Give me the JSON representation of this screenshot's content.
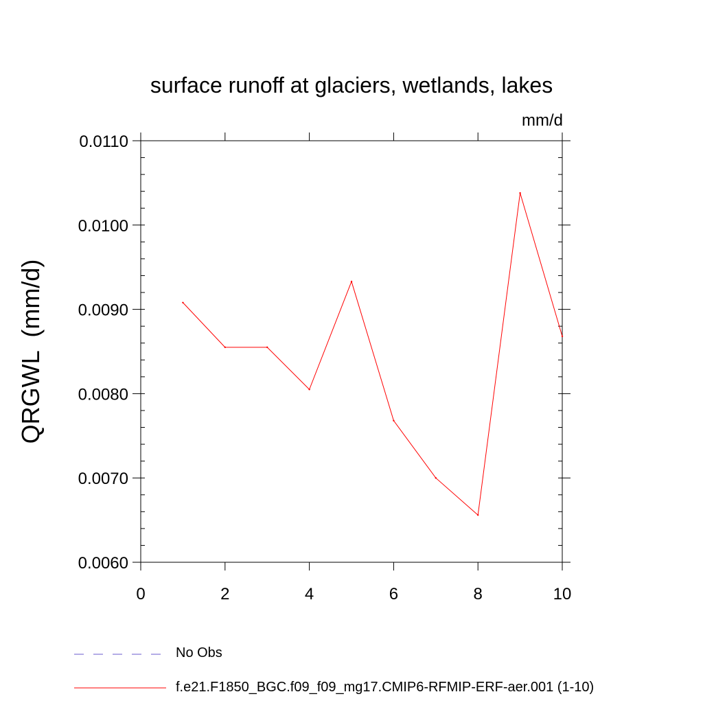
{
  "chart_data": {
    "type": "line",
    "title": "surface runoff at glaciers, wetlands, lakes",
    "units_label": "mm/d",
    "ylabel": "QRGWL  (mm/d)",
    "xlabel": "",
    "xlim": [
      0,
      10
    ],
    "ylim": [
      0.006,
      0.011
    ],
    "x_ticks": [
      0,
      2,
      4,
      6,
      8,
      10
    ],
    "x_tick_labels": [
      "0",
      "2",
      "4",
      "6",
      "8",
      "10"
    ],
    "y_ticks": [
      0.006,
      0.007,
      0.008,
      0.009,
      0.01,
      0.011
    ],
    "y_tick_labels": [
      "0.0060",
      "0.0070",
      "0.0080",
      "0.0090",
      "0.0100",
      "0.0110"
    ],
    "grid": false,
    "legend_position": "bottom",
    "series": [
      {
        "name": "f.e21.F1850_BGC.f09_f09_mg17.CMIP6-RFMIP-ERF-aer.001 (1-10)",
        "color": "#ff0000",
        "style": "solid",
        "x": [
          1,
          2,
          3,
          4,
          5,
          6,
          7,
          8,
          9,
          10
        ],
        "y": [
          0.00908,
          0.00855,
          0.00855,
          0.00805,
          0.00933,
          0.00768,
          0.007,
          0.00656,
          0.01038,
          0.00868
        ]
      }
    ],
    "legend": [
      {
        "label": "No Obs",
        "color": "#6a5acd",
        "style": "dashed"
      },
      {
        "label": "f.e21.F1850_BGC.f09_f09_mg17.CMIP6-RFMIP-ERF-aer.001 (1-10)",
        "color": "#ff0000",
        "style": "solid"
      }
    ]
  }
}
